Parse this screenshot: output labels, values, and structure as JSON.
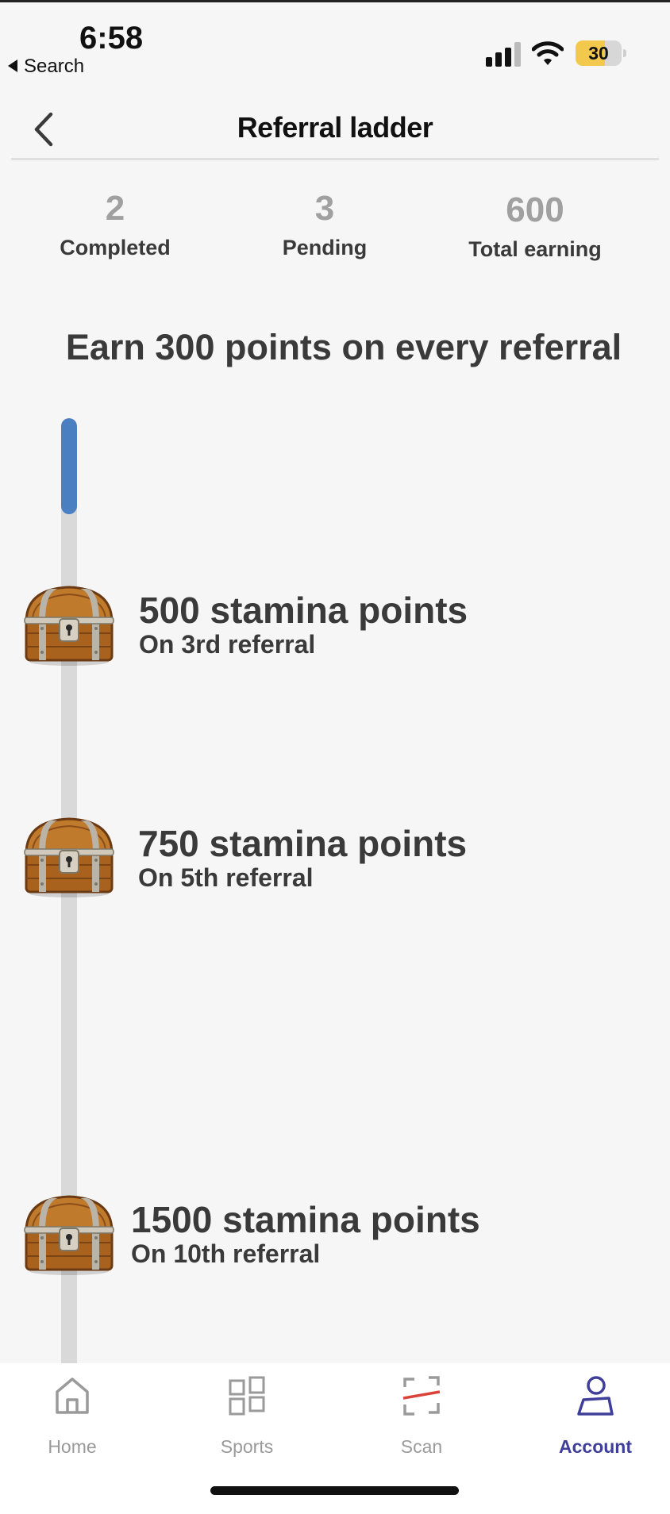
{
  "status_bar": {
    "time": "6:58",
    "back_app": "Search",
    "battery_level": "30",
    "battery_fraction": 0.3,
    "battery_color": "#f2c94c"
  },
  "header": {
    "title": "Referral ladder"
  },
  "stats": {
    "completed": {
      "value": "2",
      "label": "Completed"
    },
    "pending": {
      "value": "3",
      "label": "Pending"
    },
    "total": {
      "value": "600",
      "label": "Total earning"
    }
  },
  "headline": "Earn 300 points on every referral",
  "ladder": {
    "progress_fraction": 0.1,
    "progress_color": "#4a7fc1",
    "milestones": [
      {
        "points": "500 stamina points",
        "condition": "On 3rd referral",
        "icon": "treasure-chest-icon"
      },
      {
        "points": "750 stamina points",
        "condition": "On 5th referral",
        "icon": "treasure-chest-icon"
      },
      {
        "points": "1500 stamina points",
        "condition": "On 10th referral",
        "icon": "treasure-chest-icon"
      }
    ]
  },
  "tab_bar": {
    "active": "Account",
    "active_color": "#3f3f9a",
    "tabs": [
      {
        "label": "Home",
        "icon": "home-icon"
      },
      {
        "label": "Sports",
        "icon": "sports-grid-icon"
      },
      {
        "label": "Scan",
        "icon": "scan-icon"
      },
      {
        "label": "Account",
        "icon": "account-icon"
      }
    ]
  }
}
